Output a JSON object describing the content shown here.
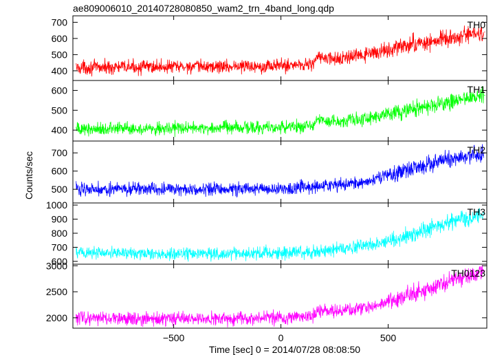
{
  "chart_data": {
    "type": "line",
    "title": "ae809006010_20140728080850_wam2_trn_4band_long.qdp",
    "xlabel": "Time [sec] 0 = 2014/07/28 08:08:50",
    "ylabel": "Counts/sec",
    "xlim": [
      -970,
      960
    ],
    "x_ticks": [
      -500,
      0,
      500
    ],
    "x_tick_labels": [
      "−500",
      "0",
      "500"
    ],
    "panels": [
      {
        "name": "TH0",
        "color": "#ff0000",
        "ylim": [
          340,
          740
        ],
        "y_ticks": [
          400,
          500,
          600,
          700
        ],
        "x": [
          -950,
          -800,
          -600,
          -400,
          -200,
          0,
          100,
          150,
          170,
          250,
          400,
          600,
          800,
          950
        ],
        "y": [
          420,
          422,
          425,
          425,
          428,
          432,
          440,
          445,
          485,
          470,
          500,
          560,
          600,
          640
        ]
      },
      {
        "name": "TH1",
        "color": "#00ff00",
        "ylim": [
          345,
          650
        ],
        "y_ticks": [
          400,
          500,
          600
        ],
        "x": [
          -950,
          -800,
          -600,
          -400,
          -200,
          0,
          100,
          150,
          170,
          250,
          400,
          600,
          800,
          950
        ],
        "y": [
          405,
          408,
          410,
          410,
          412,
          415,
          420,
          425,
          455,
          445,
          460,
          500,
          545,
          575
        ]
      },
      {
        "name": "TH2",
        "color": "#0000ff",
        "ylim": [
          425,
          765
        ],
        "y_ticks": [
          500,
          600,
          700
        ],
        "x": [
          -950,
          -800,
          -600,
          -400,
          -200,
          0,
          100,
          200,
          300,
          400,
          500,
          600,
          700,
          800,
          950
        ],
        "y": [
          505,
          502,
          500,
          500,
          502,
          505,
          510,
          515,
          525,
          545,
          575,
          610,
          640,
          665,
          700
        ]
      },
      {
        "name": "TH3",
        "color": "#00ffff",
        "ylim": [
          580,
          1015
        ],
        "y_ticks": [
          600,
          700,
          800,
          900,
          1000
        ],
        "x": [
          -950,
          -800,
          -600,
          -400,
          -200,
          0,
          100,
          200,
          300,
          400,
          500,
          600,
          700,
          800,
          950
        ],
        "y": [
          665,
          660,
          655,
          655,
          655,
          660,
          665,
          675,
          690,
          715,
          745,
          790,
          840,
          880,
          935
        ]
      },
      {
        "name": "TH0123",
        "color": "#ff00ff",
        "ylim": [
          1800,
          3030
        ],
        "y_ticks": [
          2000,
          2500,
          3000
        ],
        "x": [
          -950,
          -800,
          -600,
          -400,
          -200,
          0,
          100,
          150,
          170,
          250,
          400,
          500,
          600,
          700,
          800,
          950
        ],
        "y": [
          1995,
          1990,
          1985,
          1985,
          1990,
          2000,
          2020,
          2040,
          2130,
          2110,
          2200,
          2300,
          2450,
          2580,
          2720,
          2900
        ]
      }
    ]
  }
}
